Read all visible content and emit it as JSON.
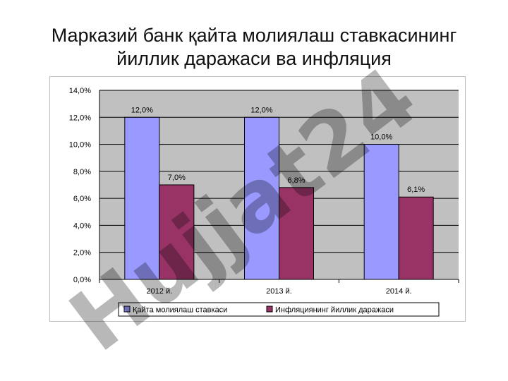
{
  "title_line1": "Марказий банк қайта молиялаш ставкасининг",
  "title_line2": "йиллик даражаси ва инфляция",
  "watermark_text": "Hujjat24",
  "chart_data": {
    "type": "bar",
    "categories": [
      "2012 й.",
      "2013 й.",
      "2014 й."
    ],
    "series": [
      {
        "name": "Қайта молиялаш ставкаси",
        "values": [
          12.0,
          12.0,
          10.0
        ],
        "labels": [
          "12,0%",
          "12,0%",
          "10,0%"
        ],
        "color": "#9999ff"
      },
      {
        "name": "Инфляциянинг йиллик даражаси",
        "values": [
          7.0,
          6.8,
          6.1
        ],
        "labels": [
          "7,0%",
          "6,8%",
          "6,1%"
        ],
        "color": "#993366"
      }
    ],
    "ylim": [
      0,
      14
    ],
    "yticks": [
      "0,0%",
      "2,0%",
      "4,0%",
      "6,0%",
      "8,0%",
      "10,0%",
      "12,0%",
      "14,0%"
    ],
    "ytick_values": [
      0,
      2,
      4,
      6,
      8,
      10,
      12,
      14
    ],
    "grid": true,
    "legend_position": "bottom",
    "plot_background": "#c0c0c0"
  }
}
